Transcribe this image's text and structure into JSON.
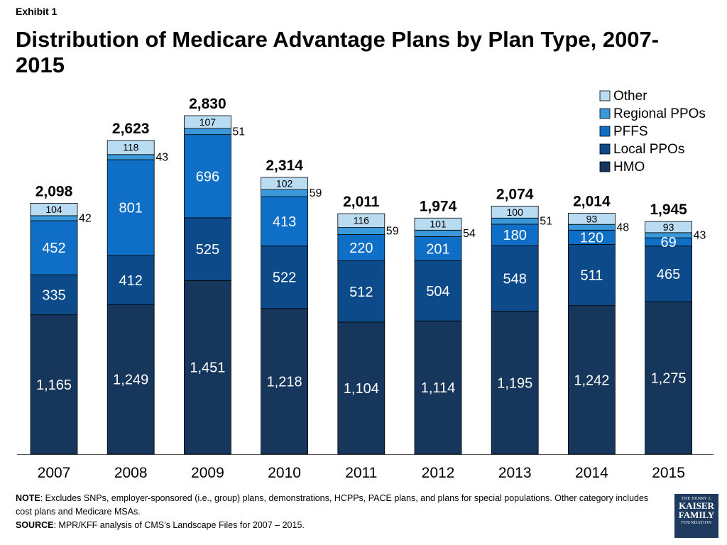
{
  "exhibit_label": "Exhibit 1",
  "title": "Distribution of Medicare Advantage Plans by Plan Type, 2007-2015",
  "chart_data": {
    "type": "bar",
    "stacked": true,
    "categories": [
      "2007",
      "2008",
      "2009",
      "2010",
      "2011",
      "2012",
      "2013",
      "2014",
      "2015"
    ],
    "series": [
      {
        "name": "HMO",
        "values": [
          1165,
          1249,
          1451,
          1218,
          1104,
          1114,
          1195,
          1242,
          1275
        ],
        "color": "#16365c"
      },
      {
        "name": "Local PPOs",
        "values": [
          335,
          412,
          525,
          522,
          512,
          504,
          548,
          511,
          465
        ],
        "color": "#0c4a8a"
      },
      {
        "name": "PFFS",
        "values": [
          452,
          801,
          696,
          413,
          220,
          201,
          180,
          120,
          69
        ],
        "color": "#0f6fc6"
      },
      {
        "name": "Regional PPOs",
        "values": [
          42,
          43,
          51,
          59,
          59,
          54,
          51,
          48,
          43
        ],
        "color": "#3a9ad9"
      },
      {
        "name": "Other",
        "values": [
          104,
          118,
          107,
          102,
          116,
          101,
          100,
          93,
          93
        ],
        "color": "#b9dcf2"
      }
    ],
    "value_labels": [
      [
        "1,165",
        "1,249",
        "1,451",
        "1,218",
        "1,104",
        "1,114",
        "1,195",
        "1,242",
        "1,275"
      ],
      [
        "335",
        "412",
        "525",
        "522",
        "512",
        "504",
        "548",
        "511",
        "465"
      ],
      [
        "452",
        "801",
        "696",
        "413",
        "220",
        "201",
        "180",
        "120",
        "69"
      ],
      [
        "42",
        "43",
        "51",
        "59",
        "59",
        "54",
        "51",
        "48",
        "43"
      ],
      [
        "104",
        "118",
        "107",
        "102",
        "116",
        "101",
        "100",
        "93",
        "93"
      ]
    ],
    "totals": [
      "2,098",
      "2,623",
      "2,830",
      "2,314",
      "2,011",
      "1,974",
      "2,074",
      "2,014",
      "1,945"
    ],
    "ylim": [
      0,
      2830
    ],
    "legend_position": "top-right",
    "grid": false
  },
  "notes": {
    "note_label": "NOTE",
    "note_text": ": Excludes SNPs, employer-sponsored (i.e., group) plans, demonstrations, HCPPs, PACE plans, and plans for special populations.  Other category includes cost plans and Medicare MSAs.",
    "source_label": "SOURCE",
    "source_text": ": MPR/KFF analysis of CMS’s Landscape Files for 2007 – 2015."
  },
  "logo": {
    "line1": "THE HENRY J.",
    "line2": "KAISER",
    "line3": "FAMILY",
    "line4": "FOUNDATION"
  }
}
